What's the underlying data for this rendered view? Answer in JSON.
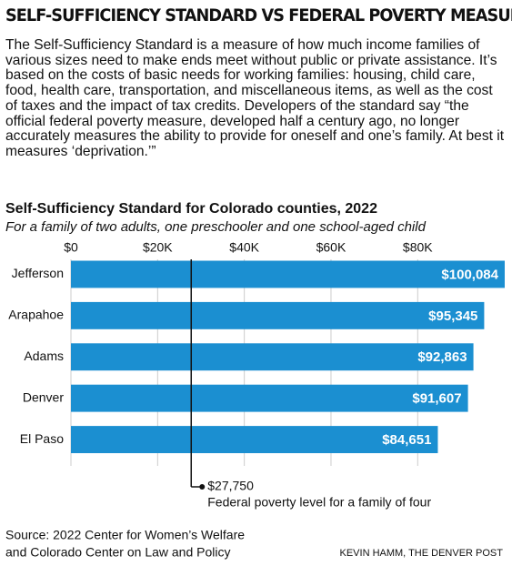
{
  "header": {
    "title": "SELF-SUFFICIENCY STANDARD VS FEDERAL POVERTY MEASURE",
    "description": "The Self-Sufficiency Standard is a measure of how much income families of various sizes need to make ends meet without public or private assistance. It’s based on the costs of basic needs for working families: housing, child care, food, health care, transportation, and miscellaneous items, as well as the cost of taxes and the impact of tax credits. Developers of the standard say “the official federal poverty measure, developed half a century ago, no longer accurately measures the ability to provide for oneself and one’s family. At best it measures ‘deprivation.’”"
  },
  "chart_data": {
    "type": "bar",
    "orientation": "horizontal",
    "title": "Self-Sufficiency Standard for Colorado counties, 2022",
    "subtitle": "For a family of two adults, one preschooler and one school-aged child",
    "categories": [
      "Jefferson",
      "Arapahoe",
      "Adams",
      "Denver",
      "El Paso"
    ],
    "values": [
      100084,
      95345,
      92863,
      91607,
      84651
    ],
    "value_labels": [
      "$100,084",
      "$95,345",
      "$92,863",
      "$91,607",
      "$84,651"
    ],
    "color": "#1b8fd1",
    "xlim": [
      0,
      100084
    ],
    "xticks": [
      {
        "value": 0,
        "label": "$0"
      },
      {
        "value": 20000,
        "label": "$20K"
      },
      {
        "value": 40000,
        "label": "$40K"
      },
      {
        "value": 60000,
        "label": "$60K"
      },
      {
        "value": 80000,
        "label": "$80K"
      }
    ],
    "grid": true,
    "reference_line": {
      "value": 27750,
      "label": "$27,750",
      "description": "Federal poverty level for a family of four"
    }
  },
  "footer": {
    "source": [
      "Source: 2022 Center for Women’s Welfare",
      "and Colorado Center on Law and Policy"
    ],
    "credit": "KEVIN HAMM, THE DENVER POST"
  }
}
